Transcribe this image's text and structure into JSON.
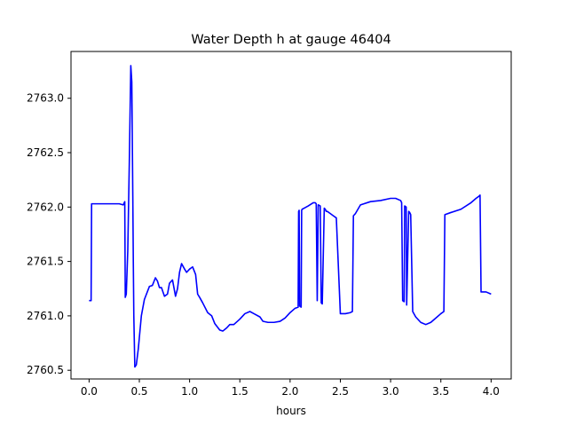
{
  "chart_data": {
    "type": "line",
    "title": "Water Depth h at gauge 46404",
    "xlabel": "hours",
    "ylabel": "",
    "xlim": [
      -0.18,
      4.2
    ],
    "ylim": [
      2760.42,
      2763.43
    ],
    "xticks": [
      {
        "value": 0.0,
        "label": "0.0"
      },
      {
        "value": 0.5,
        "label": "0.5"
      },
      {
        "value": 1.0,
        "label": "1.0"
      },
      {
        "value": 1.5,
        "label": "1.5"
      },
      {
        "value": 2.0,
        "label": "2.0"
      },
      {
        "value": 2.5,
        "label": "2.5"
      },
      {
        "value": 3.0,
        "label": "3.0"
      },
      {
        "value": 3.5,
        "label": "3.5"
      },
      {
        "value": 4.0,
        "label": "4.0"
      }
    ],
    "yticks": [
      {
        "value": 2760.5,
        "label": "2760.5"
      },
      {
        "value": 2761.0,
        "label": "2761.0"
      },
      {
        "value": 2761.5,
        "label": "2761.5"
      },
      {
        "value": 2762.0,
        "label": "2762.0"
      },
      {
        "value": 2762.5,
        "label": "2762.5"
      },
      {
        "value": 2763.0,
        "label": "2763.0"
      }
    ],
    "grid": false,
    "legend": "none",
    "series": [
      {
        "color": "#0000ff",
        "x": [
          0.0,
          0.02,
          0.025,
          0.1,
          0.2,
          0.3,
          0.34,
          0.355,
          0.36,
          0.37,
          0.385,
          0.4,
          0.415,
          0.425,
          0.435,
          0.44,
          0.445,
          0.455,
          0.47,
          0.49,
          0.52,
          0.55,
          0.6,
          0.63,
          0.66,
          0.68,
          0.7,
          0.72,
          0.75,
          0.78,
          0.8,
          0.83,
          0.86,
          0.88,
          0.9,
          0.92,
          0.95,
          0.97,
          1.0,
          1.03,
          1.06,
          1.08,
          1.1,
          1.13,
          1.18,
          1.22,
          1.25,
          1.3,
          1.33,
          1.37,
          1.4,
          1.44,
          1.5,
          1.55,
          1.6,
          1.64,
          1.7,
          1.73,
          1.78,
          1.84,
          1.9,
          1.95,
          2.0,
          2.05,
          2.08,
          2.085,
          2.09,
          2.095,
          2.11,
          2.115,
          2.12,
          2.14,
          2.18,
          2.23,
          2.25,
          2.26,
          2.27,
          2.28,
          2.3,
          2.31,
          2.32,
          2.34,
          2.35,
          2.36,
          2.37,
          2.4,
          2.43,
          2.46,
          2.5,
          2.55,
          2.6,
          2.62,
          2.63,
          2.65,
          2.7,
          2.8,
          2.9,
          3.0,
          3.05,
          3.1,
          3.11,
          3.12,
          3.135,
          3.14,
          3.155,
          3.16,
          3.18,
          3.19,
          3.2,
          3.22,
          3.25,
          3.3,
          3.35,
          3.4,
          3.45,
          3.5,
          3.53,
          3.54,
          3.6,
          3.7,
          3.8,
          3.85,
          3.88,
          3.89,
          3.9,
          3.95,
          4.0
        ],
        "y": [
          2761.14,
          2761.14,
          2762.03,
          2762.03,
          2762.03,
          2762.03,
          2762.02,
          2762.05,
          2761.17,
          2761.2,
          2761.6,
          2762.4,
          2763.3,
          2763.15,
          2762.1,
          2761.5,
          2761.0,
          2760.53,
          2760.55,
          2760.7,
          2761.0,
          2761.15,
          2761.27,
          2761.28,
          2761.35,
          2761.32,
          2761.26,
          2761.26,
          2761.18,
          2761.2,
          2761.3,
          2761.33,
          2761.18,
          2761.25,
          2761.4,
          2761.48,
          2761.43,
          2761.4,
          2761.43,
          2761.45,
          2761.38,
          2761.2,
          2761.17,
          2761.12,
          2761.03,
          2761.0,
          2760.93,
          2760.87,
          2760.86,
          2760.89,
          2760.92,
          2760.92,
          2760.97,
          2761.02,
          2761.04,
          2761.02,
          2760.99,
          2760.95,
          2760.94,
          2760.94,
          2760.95,
          2760.98,
          2761.03,
          2761.07,
          2761.08,
          2761.96,
          2761.97,
          2761.09,
          2761.08,
          2761.97,
          2761.98,
          2761.99,
          2762.01,
          2762.04,
          2762.04,
          2762.03,
          2761.14,
          2762.02,
          2762.01,
          2761.12,
          2761.11,
          2761.99,
          2761.98,
          2761.96,
          2761.96,
          2761.94,
          2761.92,
          2761.9,
          2761.02,
          2761.02,
          2761.03,
          2761.04,
          2761.92,
          2761.94,
          2762.02,
          2762.05,
          2762.06,
          2762.08,
          2762.08,
          2762.06,
          2762.04,
          2761.14,
          2761.13,
          2762.01,
          2762.0,
          2761.1,
          2761.96,
          2761.95,
          2761.93,
          2761.04,
          2760.99,
          2760.94,
          2760.92,
          2760.94,
          2760.98,
          2761.02,
          2761.04,
          2761.93,
          2761.95,
          2761.98,
          2762.04,
          2762.08,
          2762.1,
          2762.11,
          2761.22,
          2761.22,
          2761.2
        ]
      }
    ]
  }
}
